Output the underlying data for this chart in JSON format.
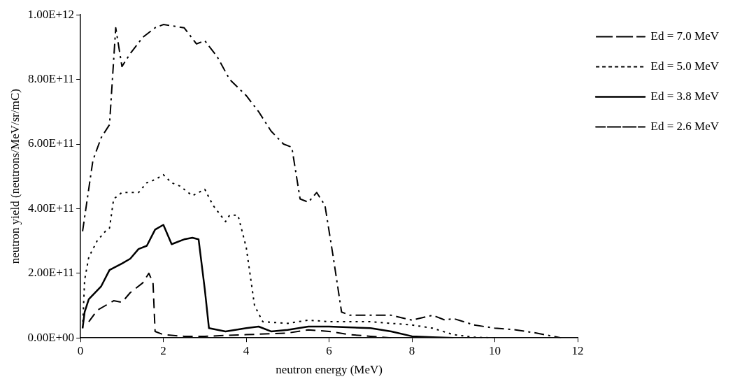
{
  "chart_data": {
    "type": "line",
    "xlabel": "neutron energy (MeV)",
    "ylabel": "neutron yield (neutrons/MeV/sr/mC)",
    "xlim": [
      0,
      12
    ],
    "xticks": [
      0,
      2,
      4,
      6,
      8,
      10,
      12
    ],
    "ylim": [
      0,
      1000000000000
    ],
    "yticks": [
      {
        "value": 0,
        "label": "0.00E+00"
      },
      {
        "value": 200000000000,
        "label": "2.00E+11"
      },
      {
        "value": 400000000000,
        "label": "4.00E+11"
      },
      {
        "value": 600000000000,
        "label": "6.00E+11"
      },
      {
        "value": 800000000000,
        "label": "8.00E+11"
      },
      {
        "value": 1000000000000,
        "label": "1.00E+12"
      }
    ],
    "grid": false,
    "legend": "top right",
    "marker": "none",
    "series": [
      {
        "name": "Ed = 7.0 MeV",
        "color": "#000000",
        "line_style": "dashdot",
        "x": [
          0.05,
          0.3,
          0.5,
          0.7,
          0.85,
          1.0,
          1.2,
          1.5,
          1.8,
          2.0,
          2.5,
          2.8,
          3.0,
          3.3,
          3.6,
          4.0,
          4.3,
          4.6,
          4.9,
          5.1,
          5.3,
          5.5,
          5.7,
          5.9,
          6.1,
          6.3,
          6.5,
          7.0,
          7.5,
          8.0,
          8.5,
          8.8,
          9.0,
          9.5,
          10.0,
          10.5,
          11.0,
          11.6
        ],
        "values": [
          330000000000,
          550000000000,
          620000000000,
          660000000000,
          960000000000,
          840000000000,
          880000000000,
          930000000000,
          960000000000,
          970000000000,
          960000000000,
          910000000000,
          920000000000,
          870000000000,
          800000000000,
          750000000000,
          700000000000,
          640000000000,
          600000000000,
          590000000000,
          430000000000,
          420000000000,
          450000000000,
          410000000000,
          250000000000,
          80000000000,
          70000000000,
          70000000000,
          70000000000,
          55000000000,
          70000000000,
          55000000000,
          60000000000,
          40000000000,
          30000000000,
          25000000000,
          15000000000,
          0
        ]
      },
      {
        "name": "Ed = 5.0 MeV",
        "color": "#000000",
        "line_style": "dotted",
        "x": [
          0.05,
          0.1,
          0.2,
          0.4,
          0.6,
          0.7,
          0.8,
          1.0,
          1.2,
          1.4,
          1.6,
          1.8,
          2.0,
          2.2,
          2.4,
          2.7,
          3.0,
          3.2,
          3.5,
          3.6,
          3.8,
          4.0,
          4.2,
          4.4,
          5.0,
          5.5,
          6.0,
          7.0,
          8.0,
          8.5,
          9.0,
          9.5,
          10.0
        ],
        "values": [
          30000000000,
          180000000000,
          250000000000,
          300000000000,
          330000000000,
          340000000000,
          430000000000,
          450000000000,
          450000000000,
          450000000000,
          480000000000,
          490000000000,
          505000000000,
          480000000000,
          470000000000,
          440000000000,
          460000000000,
          410000000000,
          360000000000,
          380000000000,
          380000000000,
          280000000000,
          100000000000,
          50000000000,
          45000000000,
          55000000000,
          50000000000,
          50000000000,
          40000000000,
          30000000000,
          10000000000,
          2000000000,
          0
        ]
      },
      {
        "name": "Ed = 3.8 MeV",
        "color": "#000000",
        "line_style": "solid",
        "x": [
          0.05,
          0.1,
          0.2,
          0.5,
          0.7,
          1.0,
          1.2,
          1.4,
          1.6,
          1.8,
          2.0,
          2.2,
          2.5,
          2.7,
          2.85,
          3.0,
          3.1,
          3.5,
          4.0,
          4.3,
          4.6,
          5.0,
          5.5,
          6.0,
          7.0,
          7.5,
          8.0,
          8.5,
          9.0
        ],
        "values": [
          30000000000,
          80000000000,
          120000000000,
          160000000000,
          210000000000,
          230000000000,
          245000000000,
          275000000000,
          285000000000,
          335000000000,
          350000000000,
          290000000000,
          305000000000,
          310000000000,
          305000000000,
          150000000000,
          30000000000,
          20000000000,
          30000000000,
          35000000000,
          20000000000,
          25000000000,
          35000000000,
          35000000000,
          30000000000,
          20000000000,
          5000000000,
          2000000000,
          0
        ]
      },
      {
        "name": "Ed = 2.6 MeV",
        "color": "#000000",
        "line_style": "dashed",
        "x": [
          0.2,
          0.4,
          0.6,
          0.8,
          1.0,
          1.2,
          1.5,
          1.65,
          1.75,
          1.8,
          2.0,
          2.5,
          3.0,
          4.0,
          5.0,
          5.5,
          6.0,
          6.5,
          7.0,
          7.5
        ],
        "values": [
          50000000000,
          85000000000,
          100000000000,
          115000000000,
          110000000000,
          140000000000,
          170000000000,
          200000000000,
          170000000000,
          20000000000,
          10000000000,
          5000000000,
          5000000000,
          10000000000,
          15000000000,
          25000000000,
          20000000000,
          10000000000,
          5000000000,
          0
        ]
      }
    ]
  }
}
